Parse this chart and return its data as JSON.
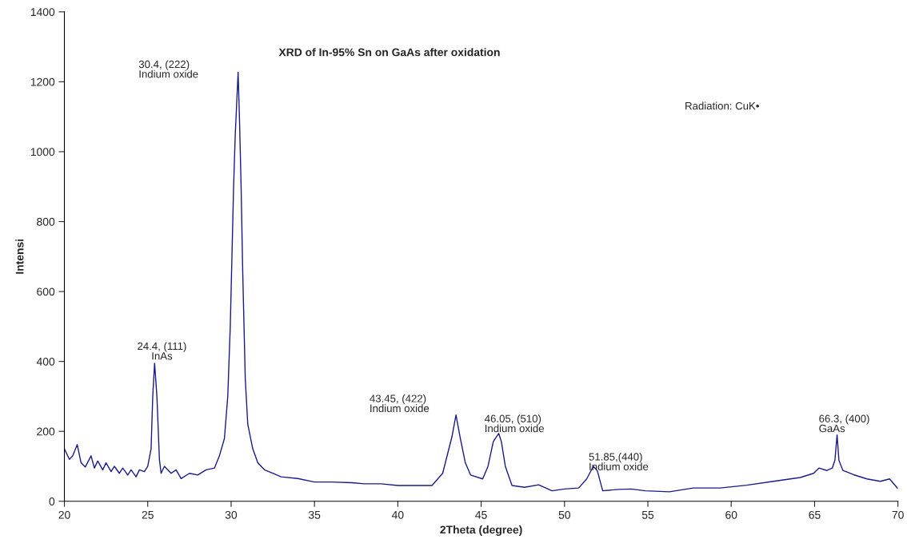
{
  "chart_data": {
    "type": "line",
    "title": "XRD of In-95% Sn on GaAs after oxidation",
    "xlabel": "2Theta (degree)",
    "ylabel": "Intensi",
    "xlim": [
      20,
      70
    ],
    "xticks": [
      20,
      25,
      30,
      35,
      40,
      45,
      50,
      55,
      60,
      65,
      70
    ],
    "ylim": [
      0,
      1400
    ],
    "yticks": [
      0,
      200,
      400,
      600,
      800,
      1000,
      1200,
      1400
    ],
    "grid": false,
    "legend": false,
    "marker": "none",
    "line_style": "solid",
    "series": [
      {
        "color": "#1a1a8c",
        "x": [
          20,
          20.3,
          20.5,
          20.77,
          21.0,
          21.25,
          21.6,
          21.8,
          22.0,
          22.3,
          22.5,
          22.8,
          23.0,
          23.3,
          23.5,
          23.8,
          24.0,
          24.3,
          24.5,
          24.8,
          25.0,
          25.2,
          25.3,
          25.41,
          25.55,
          25.7,
          25.8,
          26.0,
          26.4,
          26.7,
          27.0,
          27.5,
          28.0,
          28.5,
          29.0,
          29.3,
          29.6,
          29.8,
          29.95,
          30.05,
          30.15,
          30.25,
          30.42,
          30.5,
          30.6,
          30.7,
          30.85,
          31.0,
          31.3,
          31.6,
          32.0,
          32.5,
          33.0,
          34.0,
          35.0,
          36.0,
          37.24,
          38.0,
          39.0,
          40.0,
          41.0,
          42.05,
          42.69,
          43.25,
          43.49,
          43.73,
          44.05,
          44.37,
          45.09,
          45.41,
          45.73,
          46.05,
          46.21,
          46.45,
          46.85,
          47.6,
          48.45,
          49.25,
          50.0,
          50.85,
          51.33,
          51.73,
          51.97,
          52.29,
          53.25,
          54.0,
          54.85,
          56.29,
          57.73,
          59.33,
          60.93,
          62.54,
          64.14,
          64.94,
          65.26,
          65.74,
          66.06,
          66.22,
          66.35,
          66.46,
          66.7,
          67.34,
          68.14,
          68.94,
          69.5,
          69.98
        ],
        "values": [
          150,
          120,
          130,
          162,
          110,
          98,
          130,
          95,
          115,
          90,
          110,
          85,
          100,
          80,
          95,
          75,
          90,
          70,
          90,
          85,
          100,
          150,
          300,
          395,
          300,
          120,
          80,
          100,
          80,
          90,
          65,
          80,
          75,
          90,
          95,
          130,
          180,
          300,
          500,
          700,
          900,
          1050,
          1227,
          1100,
          900,
          650,
          350,
          220,
          150,
          110,
          90,
          80,
          70,
          65,
          55,
          55,
          53,
          50,
          50,
          45,
          45,
          45,
          80,
          185,
          247,
          185,
          110,
          75,
          64,
          100,
          171,
          194,
          171,
          100,
          45,
          40,
          47,
          30,
          35,
          38,
          64,
          100,
          87,
          30,
          34,
          35,
          30,
          27,
          38,
          38,
          46,
          57,
          68,
          80,
          95,
          88,
          95,
          117,
          190,
          117,
          88,
          76,
          64,
          57,
          64,
          37
        ]
      }
    ],
    "annotations": [
      "30.4, (222)\nIndium oxide",
      "24.4, (111)\nInAs",
      "43.45, (422)\nIndium oxide",
      "46.05, (510)\nIndium oxide",
      "51.85,(440)\nIndium oxide",
      "66.3, (400)\nGaAs",
      "Radiation: CuK•"
    ]
  }
}
